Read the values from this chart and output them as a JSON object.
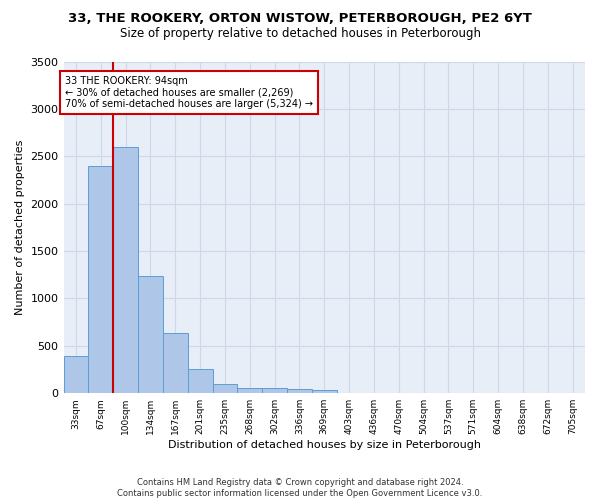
{
  "title1": "33, THE ROOKERY, ORTON WISTOW, PETERBOROUGH, PE2 6YT",
  "title2": "Size of property relative to detached houses in Peterborough",
  "xlabel": "Distribution of detached houses by size in Peterborough",
  "ylabel": "Number of detached properties",
  "categories": [
    "33sqm",
    "67sqm",
    "100sqm",
    "134sqm",
    "167sqm",
    "201sqm",
    "235sqm",
    "268sqm",
    "302sqm",
    "336sqm",
    "369sqm",
    "403sqm",
    "436sqm",
    "470sqm",
    "504sqm",
    "537sqm",
    "571sqm",
    "604sqm",
    "638sqm",
    "672sqm",
    "705sqm"
  ],
  "values": [
    390,
    2400,
    2600,
    1240,
    640,
    260,
    95,
    60,
    55,
    40,
    30,
    0,
    0,
    0,
    0,
    0,
    0,
    0,
    0,
    0,
    0
  ],
  "bar_color": "#aec6e8",
  "bar_edge_color": "#5a9ed6",
  "vline_x_idx": 2,
  "vline_color": "#cc0000",
  "annotation_text": "33 THE ROOKERY: 94sqm\n← 30% of detached houses are smaller (2,269)\n70% of semi-detached houses are larger (5,324) →",
  "annotation_box_color": "#ffffff",
  "annotation_box_edge_color": "#cc0000",
  "ylim": [
    0,
    3500
  ],
  "yticks": [
    0,
    500,
    1000,
    1500,
    2000,
    2500,
    3000,
    3500
  ],
  "grid_color": "#d0d8e8",
  "bg_color": "#e8eef8",
  "footer": "Contains HM Land Registry data © Crown copyright and database right 2024.\nContains public sector information licensed under the Open Government Licence v3.0.",
  "title1_fontsize": 9.5,
  "title2_fontsize": 8.5,
  "xlabel_fontsize": 8,
  "ylabel_fontsize": 8,
  "footer_fontsize": 6
}
